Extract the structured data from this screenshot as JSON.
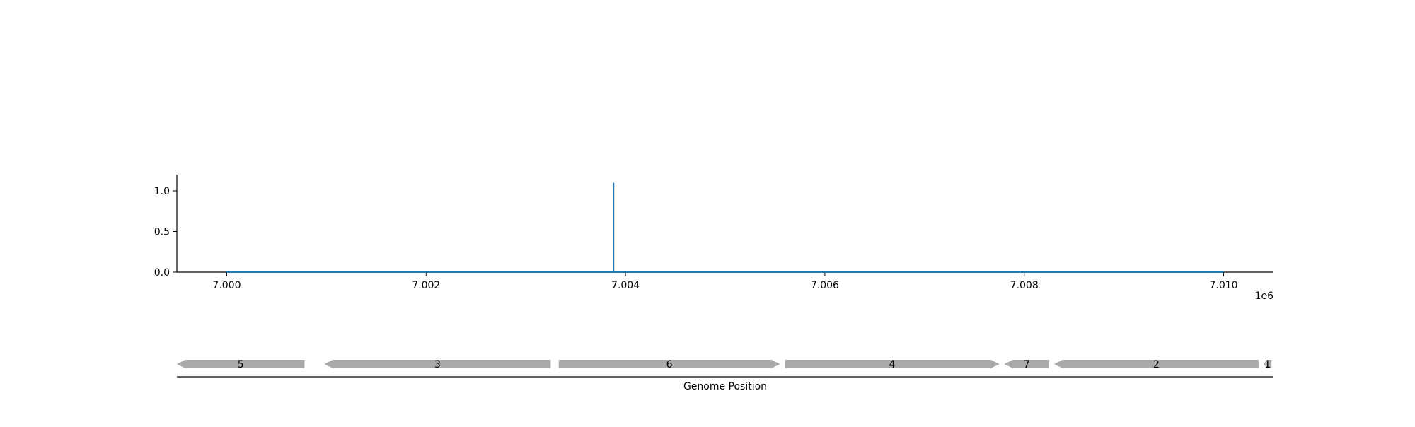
{
  "chart_data": {
    "type": "line",
    "x": [
      7000000,
      7003880,
      7003880,
      7003880,
      7010000
    ],
    "series": [
      {
        "values": [
          0,
          0,
          1.1,
          0,
          0
        ]
      }
    ],
    "xlim": [
      6999500,
      7010500
    ],
    "ylim": [
      0,
      1.2
    ],
    "xticks": [
      7000000,
      7002000,
      7004000,
      7006000,
      7008000,
      7010000
    ],
    "xtick_labels": [
      "7.000",
      "7.002",
      "7.004",
      "7.006",
      "7.008",
      "7.010"
    ],
    "yticks": [
      0.0,
      0.5,
      1.0
    ],
    "ytick_labels": [
      "0.0",
      "0.5",
      "1.0"
    ],
    "x_offset_label": "1e6",
    "xlabel": "Genome Position",
    "ylabel": "",
    "title": "",
    "colors": {
      "line": "#1f77b4",
      "gene": "#a9a9a9"
    },
    "genes": [
      {
        "label": "5",
        "start": 6999500,
        "end": 7000780,
        "strand": "-"
      },
      {
        "label": "3",
        "start": 7000980,
        "end": 7003250,
        "strand": "-"
      },
      {
        "label": "6",
        "start": 7003330,
        "end": 7005550,
        "strand": "+"
      },
      {
        "label": "4",
        "start": 7005600,
        "end": 7007750,
        "strand": "+"
      },
      {
        "label": "7",
        "start": 7007800,
        "end": 7008250,
        "strand": "-"
      },
      {
        "label": "2",
        "start": 7008300,
        "end": 7010350,
        "strand": "-"
      },
      {
        "label": "1",
        "start": 7010400,
        "end": 7010480,
        "strand": "-"
      }
    ]
  }
}
